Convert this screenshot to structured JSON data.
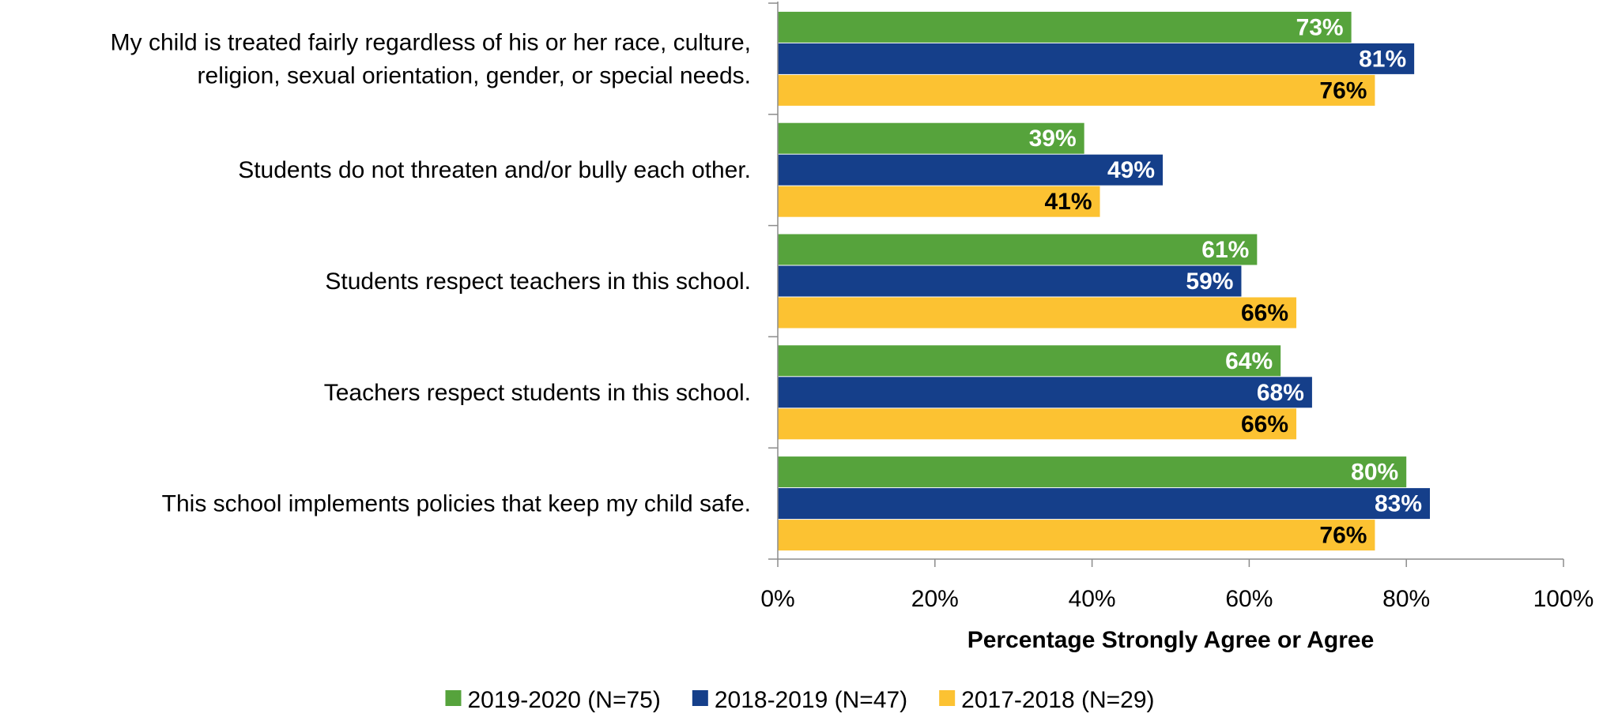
{
  "chart_data": {
    "type": "bar",
    "orientation": "horizontal",
    "categories": [
      [
        "My child is treated fairly regardless of his or her race, culture,",
        "religion, sexual orientation, gender, or special needs."
      ],
      [
        "Students do not threaten and/or bully each other."
      ],
      [
        "Students respect teachers in this school."
      ],
      [
        "Teachers respect students in this school."
      ],
      [
        "This school implements policies that keep my child safe."
      ]
    ],
    "series": [
      {
        "name": "2019-2020 (N=75)",
        "color": "#56a33c",
        "label_color": "#ffffff",
        "values": [
          73,
          39,
          61,
          64,
          80
        ]
      },
      {
        "name": "2018-2019 (N=47)",
        "color": "#153f8a",
        "label_color": "#ffffff",
        "values": [
          81,
          49,
          59,
          68,
          83
        ]
      },
      {
        "name": "2017-2018 (N=29)",
        "color": "#fcc232",
        "label_color": "#000000",
        "values": [
          76,
          41,
          66,
          66,
          76
        ]
      }
    ],
    "xlabel": "Percentage Strongly Agree or Agree",
    "xlim": [
      0,
      100
    ],
    "xticks": [
      0,
      20,
      40,
      60,
      80,
      100
    ],
    "tick_suffix": "%",
    "value_suffix": "%",
    "grid": false,
    "legend_position": "bottom"
  }
}
